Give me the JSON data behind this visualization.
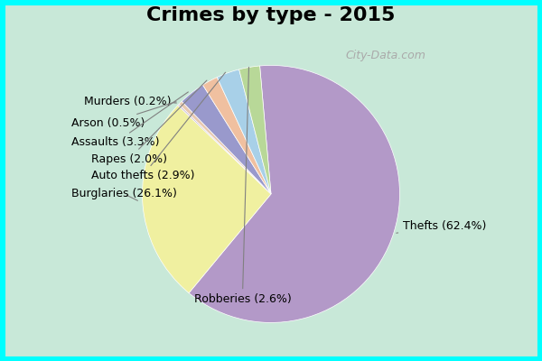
{
  "title": "Crimes by type - 2015",
  "slices": [
    {
      "label": "Thefts (62.4%)",
      "value": 62.4,
      "color": "#b399c8"
    },
    {
      "label": "Burglaries (26.1%)",
      "value": 26.1,
      "color": "#f0f0a0"
    },
    {
      "label": "Murders (0.2%)",
      "value": 0.2,
      "color": "#c8b4d0"
    },
    {
      "label": "Arson (0.5%)",
      "value": 0.5,
      "color": "#e8c8b0"
    },
    {
      "label": "Assaults (3.3%)",
      "value": 3.3,
      "color": "#9999cc"
    },
    {
      "label": "Rapes (2.0%)",
      "value": 2.0,
      "color": "#f0c0a0"
    },
    {
      "label": "Auto thefts (2.9%)",
      "value": 2.9,
      "color": "#a8d0e8"
    },
    {
      "label": "Robberies (2.6%)",
      "value": 2.6,
      "color": "#b8d898"
    }
  ],
  "background_color": "#c8e8d8",
  "title_fontsize": 16,
  "label_fontsize": 9,
  "watermark": "City-Data.com"
}
